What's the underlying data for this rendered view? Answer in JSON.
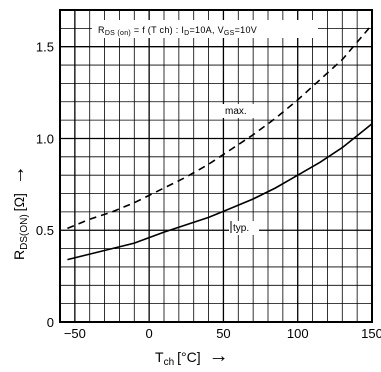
{
  "chart_data": {
    "type": "line",
    "title": "R DS (on) = f (Tch) : I D=10A, V GS=10V",
    "title_parts": {
      "r": "R",
      "r_sub": "DS (on)",
      "eq": " = f (T ch) : I",
      "i_sub": "D",
      "i_val": "=10A, V",
      "v_sub": "GS",
      "v_val": "=10V"
    },
    "xlabel": {
      "main": "T",
      "sub": "ch",
      "unit": "[°C]",
      "arrow": "→"
    },
    "ylabel": {
      "main": "R",
      "sub": "DS(ON)",
      "unit": "[Ω]",
      "arrow": "→"
    },
    "xlim": [
      -60,
      150
    ],
    "ylim": [
      0,
      1.7
    ],
    "x_ticks": [
      -50,
      0,
      50,
      100,
      150
    ],
    "x_tick_labels": [
      "−50",
      "0",
      "50",
      "100",
      "150"
    ],
    "y_ticks": [
      0,
      0.5,
      1.0,
      1.5
    ],
    "y_tick_labels": [
      "0",
      "0.5",
      "1.0",
      "1.5"
    ],
    "grid": true,
    "series": [
      {
        "name": "max.",
        "style": "dashed",
        "x": [
          -55,
          -40,
          -25,
          -10,
          0,
          10,
          25,
          40,
          55,
          70,
          85,
          100,
          115,
          130,
          150
        ],
        "y": [
          0.51,
          0.56,
          0.6,
          0.65,
          0.69,
          0.73,
          0.79,
          0.86,
          0.94,
          1.02,
          1.11,
          1.21,
          1.32,
          1.43,
          1.62
        ]
      },
      {
        "name": "typ.",
        "style": "solid",
        "x": [
          -55,
          -40,
          -25,
          -10,
          0,
          10,
          25,
          40,
          55,
          70,
          85,
          100,
          115,
          130,
          150
        ],
        "y": [
          0.34,
          0.37,
          0.4,
          0.43,
          0.46,
          0.49,
          0.53,
          0.57,
          0.62,
          0.67,
          0.73,
          0.8,
          0.87,
          0.95,
          1.08
        ]
      }
    ]
  }
}
